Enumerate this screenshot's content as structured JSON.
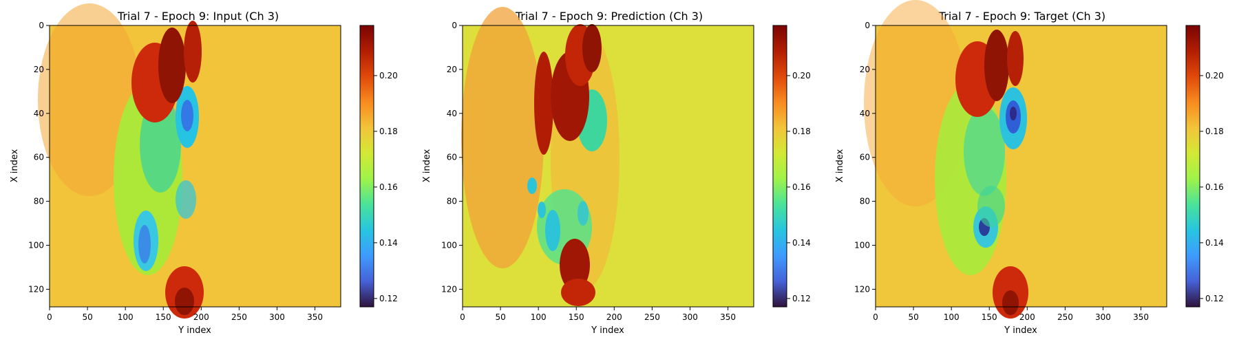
{
  "chart_data": [
    {
      "type": "heatmap",
      "title": "Trial 7 - Epoch 9: Input (Ch 3)",
      "xlabel": "Y index",
      "ylabel": "X index",
      "xlim": [
        0,
        384
      ],
      "ylim": [
        128,
        0
      ],
      "xticks": [
        0,
        50,
        100,
        150,
        200,
        250,
        300,
        350
      ],
      "yticks": [
        0,
        20,
        40,
        60,
        80,
        100,
        120
      ],
      "colormap": "turbo",
      "color_range": [
        0.117,
        0.218
      ],
      "colorbar_ticks": [
        0.12,
        0.14,
        0.16,
        0.18,
        0.2
      ],
      "colorbar_tick_labels": [
        "0.12",
        "0.14",
        "0.16",
        "0.18",
        "0.20"
      ],
      "background_value": 0.183,
      "features": [
        {
          "x": 150,
          "y": 95,
          "v": 0.142
        },
        {
          "x": 185,
          "y": 40,
          "v": 0.135
        },
        {
          "x": 145,
          "y": 28,
          "v": 0.212
        },
        {
          "x": 180,
          "y": 125,
          "v": 0.205
        }
      ]
    },
    {
      "type": "heatmap",
      "title": "Trial 7 - Epoch 9: Prediction (Ch 3)",
      "xlabel": "Y index",
      "ylabel": "X index",
      "xlim": [
        0,
        384
      ],
      "ylim": [
        128,
        0
      ],
      "xticks": [
        0,
        50,
        100,
        150,
        200,
        250,
        300,
        350
      ],
      "yticks": [
        0,
        20,
        40,
        60,
        80,
        100,
        120
      ],
      "colormap": "turbo",
      "color_range": [
        0.117,
        0.218
      ],
      "colorbar_ticks": [
        0.12,
        0.14,
        0.16,
        0.18,
        0.2
      ],
      "colorbar_tick_labels": [
        "0.12",
        "0.14",
        "0.16",
        "0.18",
        "0.20"
      ],
      "background_value": 0.18,
      "features": [
        {
          "x": 110,
          "y": 45,
          "v": 0.213
        },
        {
          "x": 140,
          "y": 30,
          "v": 0.212
        },
        {
          "x": 185,
          "y": 45,
          "v": 0.158
        },
        {
          "x": 125,
          "y": 85,
          "v": 0.152
        },
        {
          "x": 140,
          "y": 110,
          "v": 0.21
        }
      ]
    },
    {
      "type": "heatmap",
      "title": "Trial 7 - Epoch 9: Target (Ch 3)",
      "xlabel": "Y index",
      "ylabel": "X index",
      "xlim": [
        0,
        384
      ],
      "ylim": [
        128,
        0
      ],
      "xticks": [
        0,
        50,
        100,
        150,
        200,
        250,
        300,
        350
      ],
      "yticks": [
        0,
        20,
        40,
        60,
        80,
        100,
        120
      ],
      "colormap": "turbo",
      "color_range": [
        0.117,
        0.218
      ],
      "colorbar_ticks": [
        0.12,
        0.14,
        0.16,
        0.18,
        0.2
      ],
      "colorbar_tick_labels": [
        "0.12",
        "0.14",
        "0.16",
        "0.18",
        "0.20"
      ],
      "background_value": 0.183,
      "features": [
        {
          "x": 185,
          "y": 42,
          "v": 0.125
        },
        {
          "x": 140,
          "y": 90,
          "v": 0.12
        },
        {
          "x": 150,
          "y": 30,
          "v": 0.21
        },
        {
          "x": 180,
          "y": 120,
          "v": 0.205
        }
      ]
    }
  ]
}
